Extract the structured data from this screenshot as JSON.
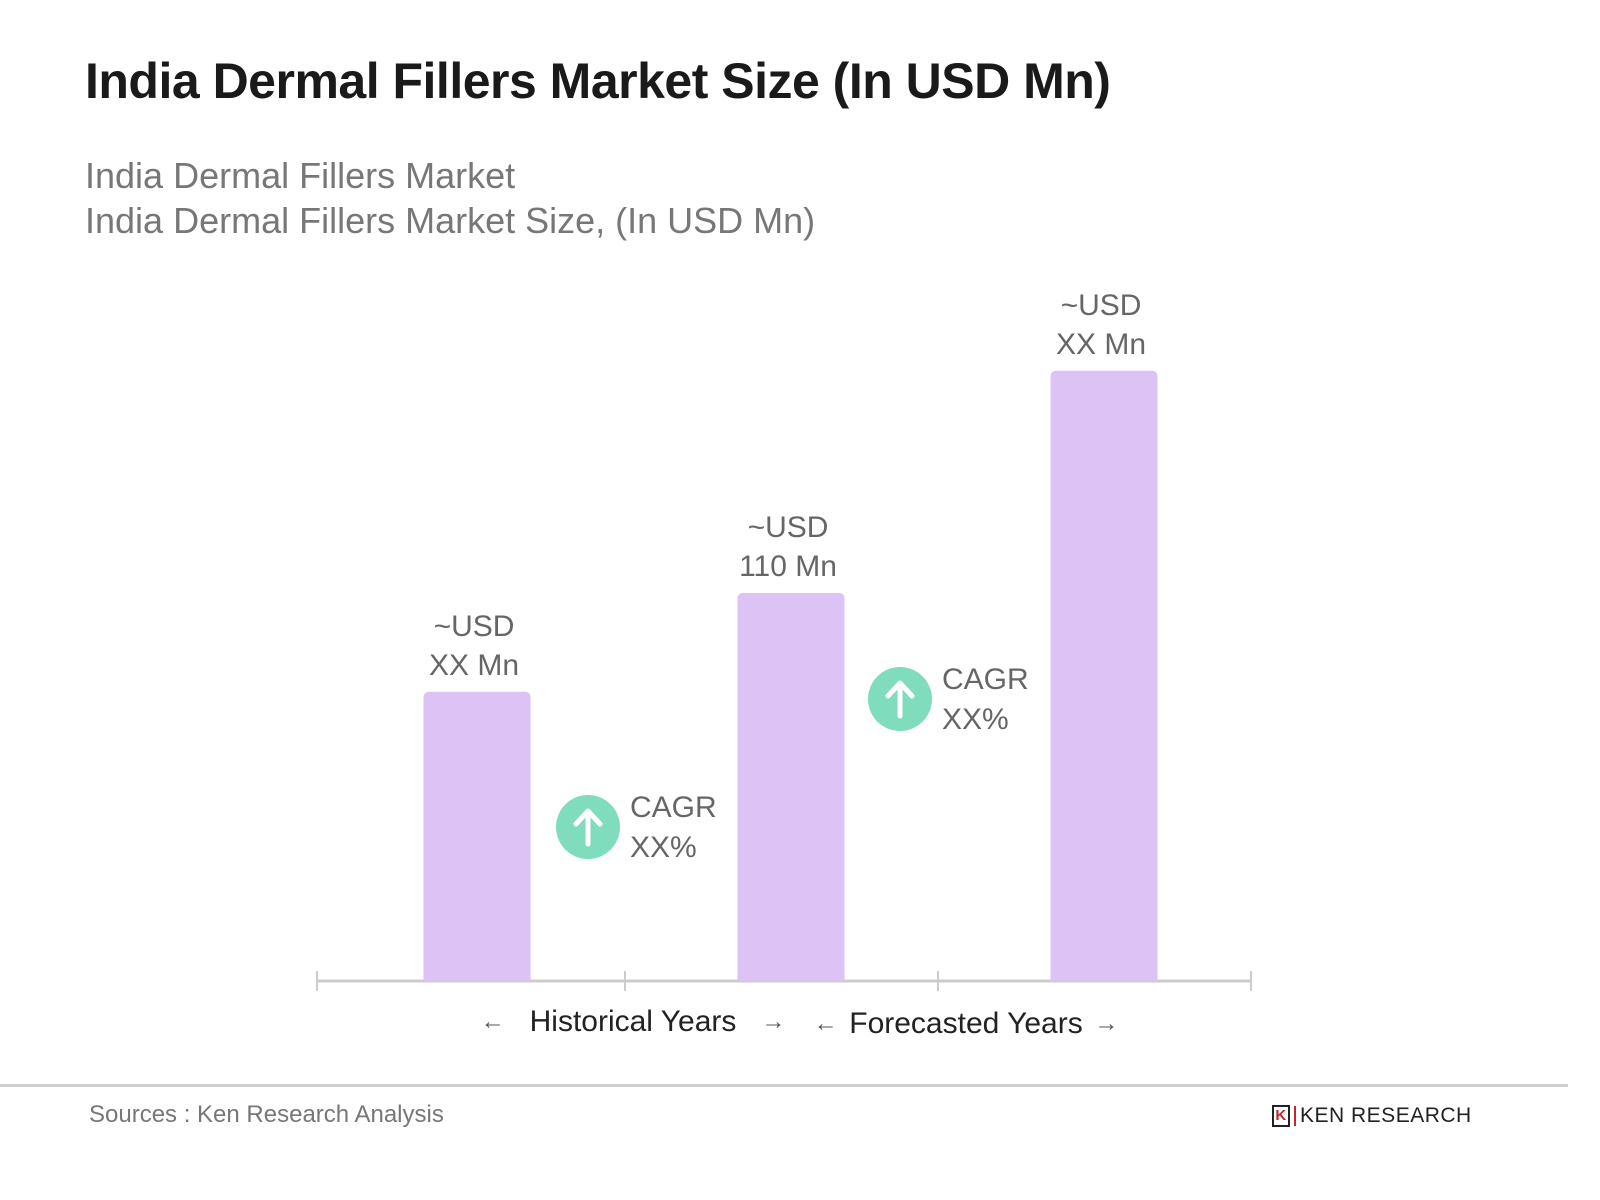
{
  "title": "India Dermal Fillers Market Size (In USD Mn)",
  "subtitle_line1": "India Dermal Fillers Market",
  "subtitle_line2": "India Dermal Fillers Market Size, (In USD Mn)",
  "chart_data": {
    "type": "bar",
    "categories": [
      "",
      "",
      ""
    ],
    "values": [
      82,
      110,
      173
    ],
    "bar_labels": [
      [
        "~USD",
        "XX Mn"
      ],
      [
        "~USD",
        "110 Mn"
      ],
      [
        "~USD",
        "XX Mn"
      ]
    ],
    "cagr_labels": [
      [
        "CAGR",
        "XX%"
      ],
      [
        "CAGR",
        "XX%"
      ]
    ],
    "axis_groups": [
      "Historical Years",
      "Forecasted Years"
    ],
    "grid": false,
    "colors": {
      "bar": "#dcc2f5",
      "cagr_icon": "#7fdcbd",
      "axis": "#cccccc"
    }
  },
  "footer": {
    "source": "Sources : Ken Research Analysis",
    "logo_text": "KEN RESEARCH"
  }
}
